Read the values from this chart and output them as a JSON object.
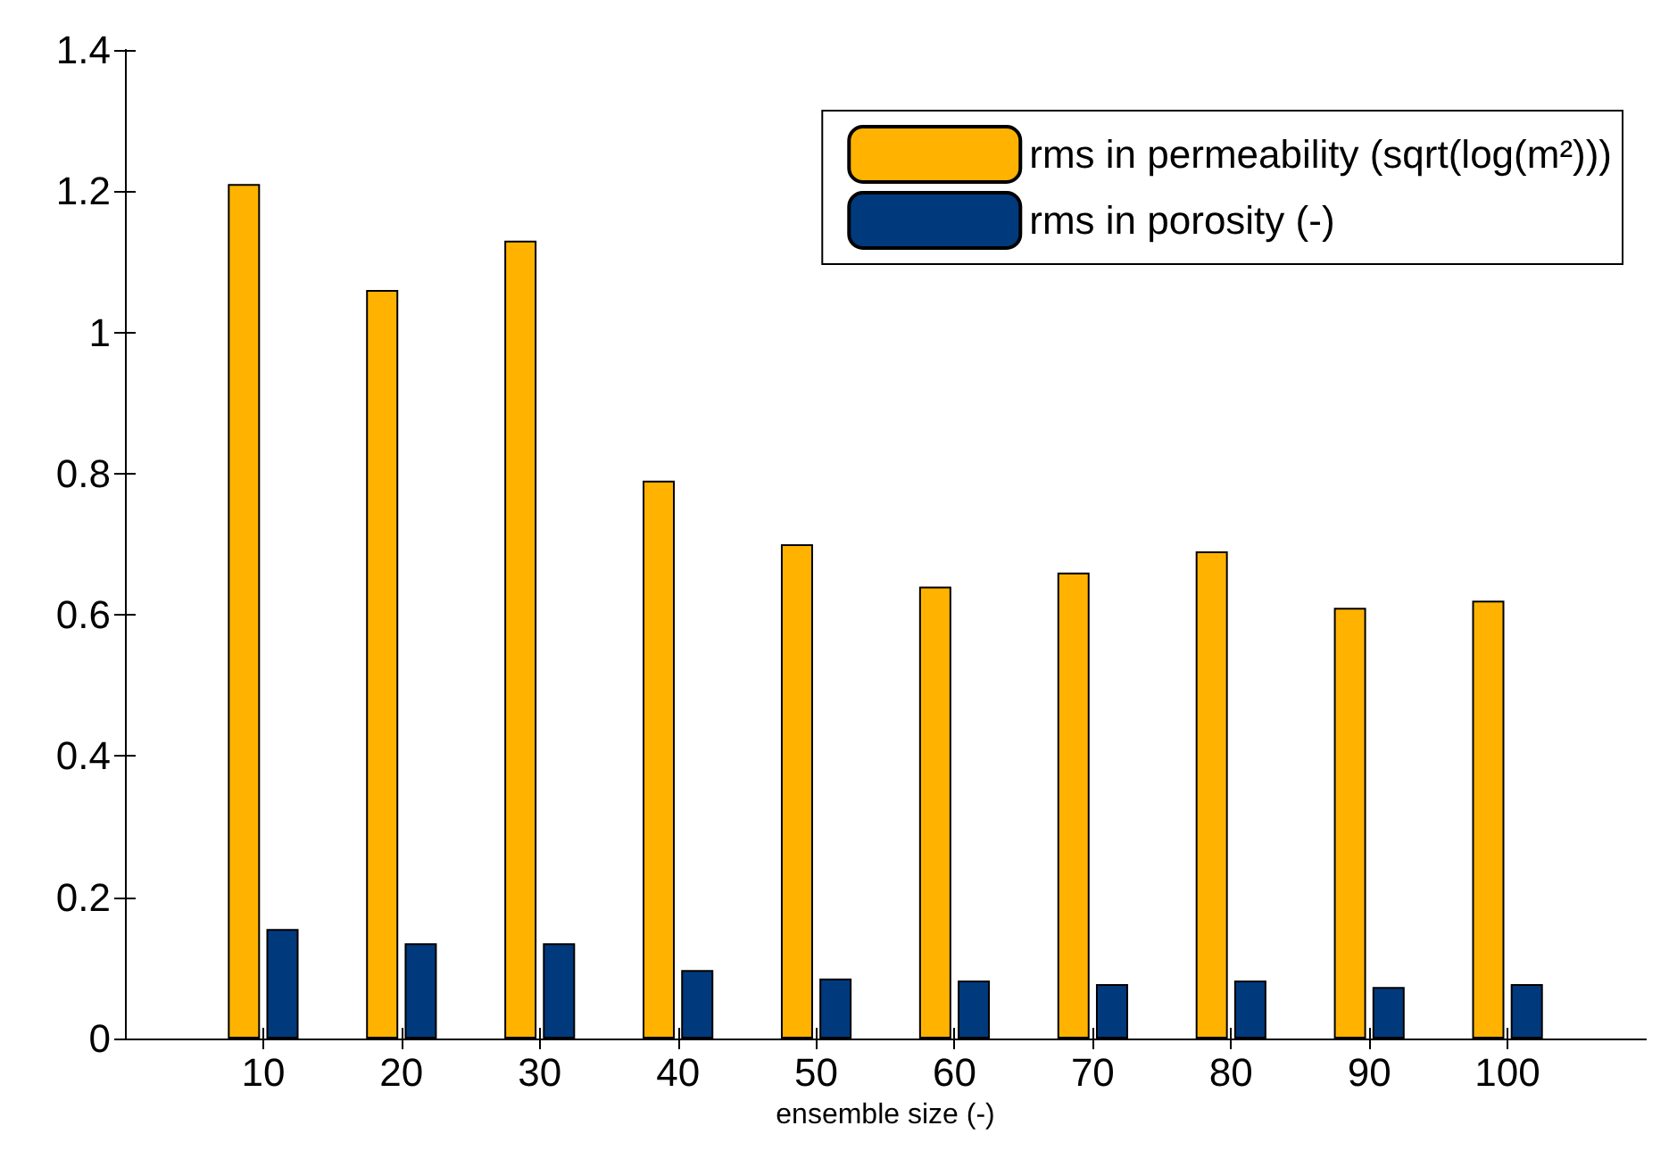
{
  "chart_data": {
    "type": "bar",
    "xlabel": "ensemble size (-)",
    "x": [
      10,
      20,
      30,
      40,
      50,
      60,
      70,
      80,
      90,
      100
    ],
    "xlim": [
      0,
      110
    ],
    "xticks": [
      10,
      20,
      30,
      40,
      50,
      60,
      70,
      80,
      90,
      100
    ],
    "ylim": [
      0,
      1.4
    ],
    "yticks": [
      0,
      0.2,
      0.4,
      0.6,
      0.8,
      1,
      1.2,
      1.4
    ],
    "series": [
      {
        "name": "rms in permeability (sqrt(log(m²)))",
        "color": "#ffb300",
        "values": [
          1.21,
          1.06,
          1.13,
          0.79,
          0.7,
          0.64,
          0.66,
          0.69,
          0.61,
          0.62
        ]
      },
      {
        "name": "rms in porosity (-)",
        "color": "#003a7d",
        "values": [
          0.155,
          0.135,
          0.135,
          0.097,
          0.085,
          0.082,
          0.077,
          0.082,
          0.073,
          0.077
        ]
      }
    ],
    "grid": false,
    "legend": "top right"
  }
}
